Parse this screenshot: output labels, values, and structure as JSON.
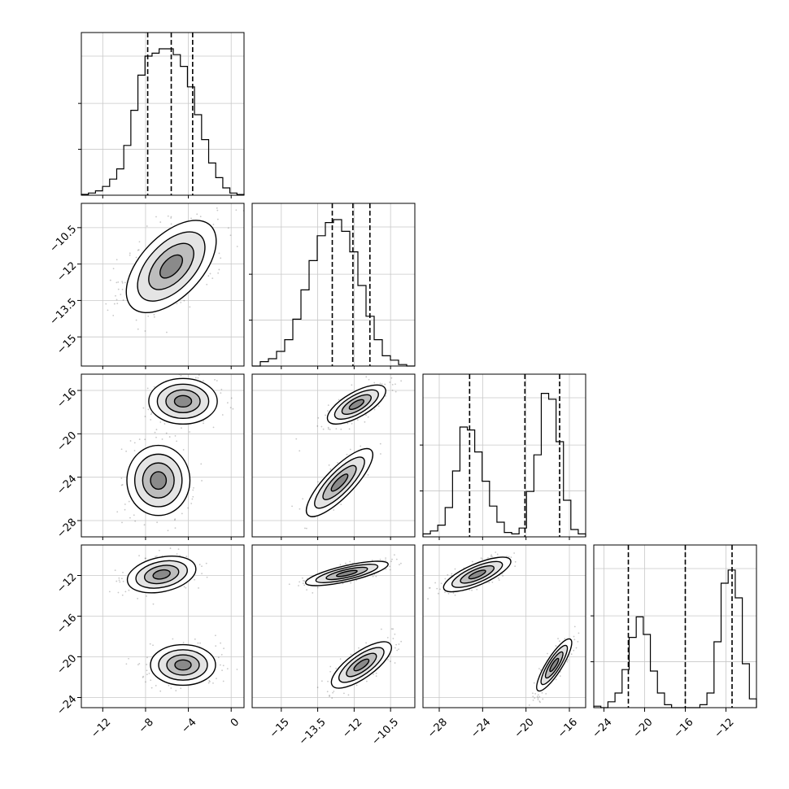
{
  "chart_data": {
    "type": "corner",
    "grid": true,
    "colors": {
      "marks": "#000000",
      "grid": "#c8c8c8",
      "fill_levels": [
        "#ffffff",
        "#e4e4e4",
        "#bdbdbd",
        "#8a8a8a",
        "#1c1c1c"
      ]
    },
    "params": [
      {
        "range": [
          -14,
          1.2
        ],
        "ticks": [
          -12,
          -8,
          -4,
          0
        ],
        "hist": [
          0.006,
          0.015,
          0.03,
          0.06,
          0.11,
          0.18,
          0.34,
          0.58,
          0.82,
          0.95,
          0.97,
          1.0,
          1.0,
          0.96,
          0.88,
          0.74,
          0.55,
          0.38,
          0.22,
          0.12,
          0.05,
          0.015,
          0.005
        ],
        "quantiles": [
          -7.8,
          -5.6,
          -3.6
        ]
      },
      {
        "range": [
          -16.2,
          -9.5
        ],
        "ticks": [
          -15.0,
          -13.5,
          -12.0,
          -10.5
        ],
        "hist": [
          0.0,
          0.03,
          0.05,
          0.1,
          0.18,
          0.32,
          0.52,
          0.72,
          0.89,
          0.98,
          1.0,
          0.92,
          0.78,
          0.55,
          0.34,
          0.18,
          0.07,
          0.04,
          0.01,
          0.0
        ],
        "quantiles": [
          -12.9,
          -12.05,
          -11.35
        ]
      },
      {
        "range": [
          -29.5,
          -14.5
        ],
        "ticks": [
          -28,
          -24,
          -20,
          -16
        ],
        "hist": [
          0.02,
          0.04,
          0.08,
          0.2,
          0.45,
          0.75,
          0.73,
          0.58,
          0.38,
          0.21,
          0.1,
          0.03,
          0.02,
          0.06,
          0.31,
          0.56,
          0.98,
          0.94,
          0.65,
          0.25,
          0.05,
          0.02
        ],
        "quantiles": [
          -25.2,
          -20.1,
          -16.9
        ]
      },
      {
        "range": [
          -25.0,
          -9.0
        ],
        "ticks": [
          -24,
          -20,
          -16,
          -12
        ],
        "hist": [
          0.01,
          0.0,
          0.04,
          0.1,
          0.26,
          0.48,
          0.62,
          0.5,
          0.25,
          0.1,
          0.02,
          0.0,
          0.0,
          0.0,
          0.0,
          0.02,
          0.1,
          0.45,
          0.85,
          0.94,
          0.75,
          0.3,
          0.06
        ],
        "quantiles": [
          -21.6,
          -16.0,
          -11.4
        ]
      }
    ],
    "pairs": [
      {
        "row": 1,
        "col": 0,
        "modes": [
          {
            "mean": [
              -5.6,
              -12.1
            ],
            "sd": [
              2.1,
              0.95
            ],
            "rho": 0.55,
            "weight": 1.0
          }
        ]
      },
      {
        "row": 2,
        "col": 0,
        "modes": [
          {
            "mean": [
              -4.5,
              -17.0
            ],
            "sd": [
              1.6,
              1.05
            ],
            "rho": 0.0,
            "weight": 0.55
          },
          {
            "mean": [
              -6.8,
              -24.3
            ],
            "sd": [
              1.55,
              1.7
            ],
            "rho": 0.0,
            "weight": 0.45
          }
        ]
      },
      {
        "row": 2,
        "col": 1,
        "modes": [
          {
            "mean": [
              -11.9,
              -17.3
            ],
            "sd": [
              0.6,
              0.9
            ],
            "rho": 0.7,
            "weight": 0.55
          },
          {
            "mean": [
              -12.6,
              -24.5
            ],
            "sd": [
              0.72,
              1.65
            ],
            "rho": 0.82,
            "weight": 0.45
          }
        ]
      },
      {
        "row": 3,
        "col": 0,
        "modes": [
          {
            "mean": [
              -6.5,
              -11.9
            ],
            "sd": [
              1.6,
              0.9
            ],
            "rho": 0.3,
            "weight": 0.55
          },
          {
            "mean": [
              -4.5,
              -20.8
            ],
            "sd": [
              1.6,
              1.05
            ],
            "rho": 0.0,
            "weight": 0.45
          }
        ]
      },
      {
        "row": 3,
        "col": 1,
        "modes": [
          {
            "mean": [
              -12.3,
              -11.8
            ],
            "sd": [
              0.85,
              0.6
            ],
            "rho": 0.75,
            "weight": 0.55
          },
          {
            "mean": [
              -11.7,
              -20.8
            ],
            "sd": [
              0.65,
              1.2
            ],
            "rho": 0.75,
            "weight": 0.45
          }
        ]
      },
      {
        "row": 3,
        "col": 2,
        "modes": [
          {
            "mean": [
              -24.5,
              -11.9
            ],
            "sd": [
              1.55,
              0.85
            ],
            "rho": 0.75,
            "weight": 0.55
          },
          {
            "mean": [
              -17.4,
              -20.8
            ],
            "sd": [
              0.85,
              1.35
            ],
            "rho": 0.85,
            "weight": 0.45
          }
        ]
      }
    ]
  }
}
